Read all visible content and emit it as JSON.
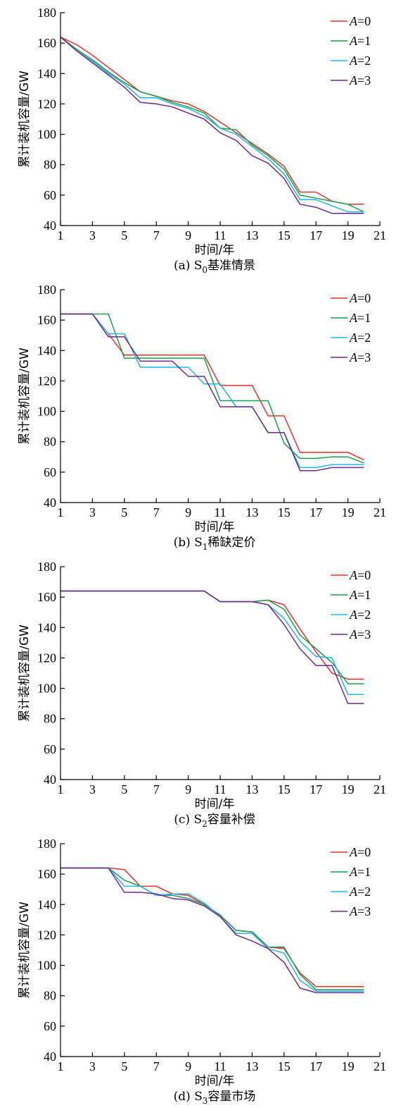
{
  "chart_data": [
    {
      "type": "line",
      "caption": "(a) S0基准情景",
      "caption_parts": {
        "prefix": "(a) S",
        "sub": "0",
        "suffix": "基准情景"
      },
      "xlabel": "时间/年",
      "ylabel": "累计装机容量/GW",
      "xlim": [
        1,
        21
      ],
      "ylim": [
        40,
        180
      ],
      "xticks": [
        1,
        3,
        5,
        7,
        9,
        11,
        13,
        15,
        17,
        19,
        21
      ],
      "yticks": [
        40,
        60,
        80,
        100,
        120,
        140,
        160,
        180
      ],
      "legend_position": "top-right",
      "grid": false,
      "x": [
        1,
        2,
        3,
        4,
        5,
        6,
        7,
        8,
        9,
        10,
        11,
        12,
        13,
        14,
        15,
        16,
        17,
        18,
        19,
        20
      ],
      "series": [
        {
          "name": "A=0",
          "var": "A",
          "val": "=0",
          "color": "#e8302a",
          "values": [
            164,
            159,
            152,
            144,
            136,
            128,
            125,
            122,
            120,
            115,
            108,
            101,
            94,
            87,
            79,
            62,
            62,
            56,
            54,
            54
          ]
        },
        {
          "name": "A=1",
          "var": "A",
          "val": "=1",
          "color": "#1a9e4a",
          "values": [
            164,
            156,
            149,
            141,
            134,
            128,
            125,
            121,
            118,
            114,
            104,
            103,
            93,
            86,
            77,
            60,
            58,
            56,
            54,
            49
          ]
        },
        {
          "name": "A=2",
          "var": "A",
          "val": "=2",
          "color": "#1fb7e8",
          "values": [
            164,
            155,
            148,
            140,
            133,
            124,
            124,
            120,
            117,
            112,
            104,
            100,
            92,
            84,
            74,
            57,
            57,
            53,
            49,
            49
          ]
        },
        {
          "name": "A=3",
          "var": "A",
          "val": "=3",
          "color": "#6e2a8a",
          "values": [
            164,
            155,
            147,
            139,
            131,
            121,
            120,
            118,
            114,
            110,
            101,
            96,
            86,
            81,
            71,
            54,
            52,
            48,
            48,
            48
          ]
        }
      ]
    },
    {
      "type": "line",
      "caption": "(b) S1稀缺定价",
      "caption_parts": {
        "prefix": "(b) S",
        "sub": "1",
        "suffix": "稀缺定价"
      },
      "xlabel": "时间/年",
      "ylabel": "累计装机容量/GW",
      "xlim": [
        1,
        21
      ],
      "ylim": [
        40,
        180
      ],
      "xticks": [
        1,
        3,
        5,
        7,
        9,
        11,
        13,
        15,
        17,
        19,
        21
      ],
      "yticks": [
        40,
        60,
        80,
        100,
        120,
        140,
        160,
        180
      ],
      "legend_position": "top-right",
      "grid": false,
      "x": [
        1,
        2,
        3,
        4,
        5,
        6,
        7,
        8,
        9,
        10,
        11,
        12,
        13,
        14,
        15,
        16,
        17,
        18,
        19,
        20
      ],
      "series": [
        {
          "name": "A=0",
          "var": "A",
          "val": "=0",
          "color": "#e8302a",
          "values": [
            164,
            164,
            164,
            151,
            137,
            137,
            137,
            137,
            137,
            137,
            117,
            117,
            117,
            97,
            97,
            73,
            73,
            73,
            73,
            68
          ]
        },
        {
          "name": "A=1",
          "var": "A",
          "val": "=1",
          "color": "#1a9e4a",
          "values": [
            164,
            164,
            164,
            164,
            135,
            135,
            135,
            135,
            135,
            135,
            107,
            107,
            107,
            107,
            79,
            69,
            69,
            70,
            70,
            66
          ]
        },
        {
          "name": "A=2",
          "var": "A",
          "val": "=2",
          "color": "#1fb7e8",
          "values": [
            164,
            164,
            164,
            151,
            151,
            129,
            129,
            129,
            129,
            118,
            118,
            103,
            103,
            86,
            86,
            63,
            63,
            65,
            65,
            65
          ]
        },
        {
          "name": "A=3",
          "var": "A",
          "val": "=3",
          "color": "#6e2a8a",
          "values": [
            164,
            164,
            164,
            149,
            149,
            133,
            133,
            133,
            123,
            123,
            103,
            103,
            103,
            86,
            86,
            61,
            61,
            63,
            63,
            63
          ]
        }
      ]
    },
    {
      "type": "line",
      "caption": "(c) S2容量补偿",
      "caption_parts": {
        "prefix": "(c) S",
        "sub": "2",
        "suffix": "容量补偿"
      },
      "xlabel": "时间/年",
      "ylabel": "累计装机容量/GW",
      "xlim": [
        1,
        21
      ],
      "ylim": [
        40,
        180
      ],
      "xticks": [
        1,
        3,
        5,
        7,
        9,
        11,
        13,
        15,
        17,
        19,
        21
      ],
      "yticks": [
        40,
        60,
        80,
        100,
        120,
        140,
        160,
        180
      ],
      "legend_position": "top-right",
      "grid": false,
      "x": [
        1,
        2,
        3,
        4,
        5,
        6,
        7,
        8,
        9,
        10,
        11,
        12,
        13,
        14,
        15,
        16,
        17,
        18,
        19,
        20
      ],
      "series": [
        {
          "name": "A=0",
          "var": "A",
          "val": "=0",
          "color": "#e8302a",
          "values": [
            164,
            164,
            164,
            164,
            164,
            164,
            164,
            164,
            164,
            164,
            157,
            157,
            157,
            158,
            155,
            139,
            124,
            110,
            106,
            106
          ]
        },
        {
          "name": "A=1",
          "var": "A",
          "val": "=1",
          "color": "#1a9e4a",
          "values": [
            164,
            164,
            164,
            164,
            164,
            164,
            164,
            164,
            164,
            164,
            157,
            157,
            157,
            158,
            152,
            135,
            126,
            117,
            103,
            103
          ]
        },
        {
          "name": "A=2",
          "var": "A",
          "val": "=2",
          "color": "#1fb7e8",
          "values": [
            164,
            164,
            164,
            164,
            164,
            164,
            164,
            164,
            164,
            164,
            157,
            157,
            157,
            155,
            146,
            131,
            121,
            120,
            96,
            96
          ]
        },
        {
          "name": "A=3",
          "var": "A",
          "val": "=3",
          "color": "#6e2a8a",
          "values": [
            164,
            164,
            164,
            164,
            164,
            164,
            164,
            164,
            164,
            164,
            157,
            157,
            157,
            155,
            142,
            126,
            115,
            115,
            90,
            90
          ]
        }
      ]
    },
    {
      "type": "line",
      "caption": "(d) S3容量市场",
      "caption_parts": {
        "prefix": "(d) S",
        "sub": "3",
        "suffix": "容量市场"
      },
      "xlabel": "时间/年",
      "ylabel": "累计装机容量/GW",
      "xlim": [
        1,
        21
      ],
      "ylim": [
        40,
        180
      ],
      "xticks": [
        1,
        3,
        5,
        7,
        9,
        11,
        13,
        15,
        17,
        19,
        21
      ],
      "yticks": [
        40,
        60,
        80,
        100,
        120,
        140,
        160,
        180
      ],
      "legend_position": "top-right",
      "grid": false,
      "x": [
        1,
        2,
        3,
        4,
        5,
        6,
        7,
        8,
        9,
        10,
        11,
        12,
        13,
        14,
        15,
        16,
        17,
        18,
        19,
        20
      ],
      "series": [
        {
          "name": "A=0",
          "var": "A",
          "val": "=0",
          "color": "#e8302a",
          "values": [
            164,
            164,
            164,
            164,
            163,
            152,
            152,
            147,
            146,
            140,
            133,
            123,
            122,
            112,
            111,
            95,
            86,
            86,
            86,
            86
          ]
        },
        {
          "name": "A=1",
          "var": "A",
          "val": "=1",
          "color": "#1a9e4a",
          "values": [
            164,
            164,
            164,
            164,
            156,
            152,
            146,
            146,
            144,
            140,
            133,
            123,
            122,
            112,
            112,
            94,
            84,
            84,
            84,
            84
          ]
        },
        {
          "name": "A=2",
          "var": "A",
          "val": "=2",
          "color": "#1fb7e8",
          "values": [
            164,
            164,
            164,
            164,
            152,
            152,
            146,
            147,
            147,
            141,
            132,
            121,
            121,
            111,
            108,
            90,
            83,
            83,
            83,
            83
          ]
        },
        {
          "name": "A=3",
          "var": "A",
          "val": "=3",
          "color": "#6e2a8a",
          "values": [
            164,
            164,
            164,
            164,
            148,
            148,
            147,
            144,
            143,
            139,
            132,
            120,
            116,
            111,
            102,
            85,
            82,
            82,
            82,
            82
          ]
        }
      ]
    }
  ]
}
